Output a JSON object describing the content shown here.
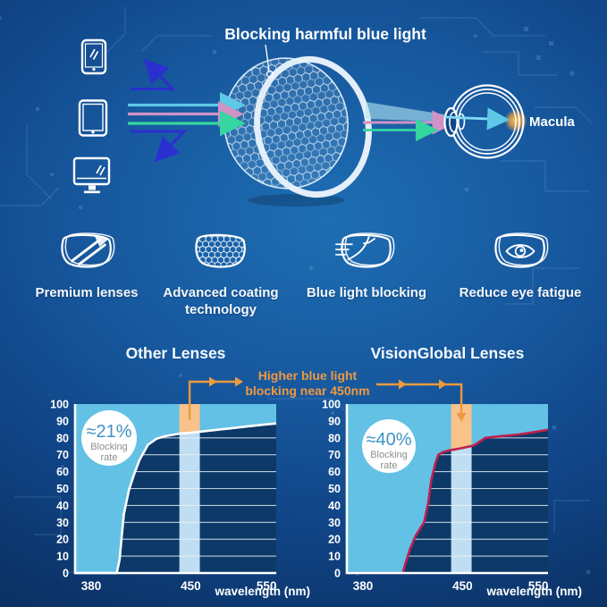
{
  "hero": {
    "title": "Blocking harmful blue light",
    "macula_label": "Macula",
    "device_icons": [
      "smartphone-icon",
      "tablet-icon",
      "monitor-icon"
    ],
    "ray_colors": {
      "cyan": "#5ec8e6",
      "pink": "#cf93c6",
      "green": "#35d6a0",
      "reflected_blue": "#2b2fd0"
    }
  },
  "features": {
    "items": [
      {
        "icon": "premium-lens-icon",
        "label_line1": "Premium lenses",
        "label_line2": ""
      },
      {
        "icon": "advanced-coating-lens-icon",
        "label_line1": "Advanced coating",
        "label_line2": "technology"
      },
      {
        "icon": "blue-light-blocking-lens-icon",
        "label_line1": "Blue light blocking",
        "label_line2": ""
      },
      {
        "icon": "reduce-eye-fatigue-lens-icon",
        "label_line1": "Reduce eye fatigue",
        "label_line2": ""
      }
    ]
  },
  "charts_annotation": {
    "line1": "Higher blue light",
    "line2": "blocking near 450nm"
  },
  "colors": {
    "plot_bg": "#0d3968",
    "fill_above_curve": "#62c1e5",
    "band": "#c0def1",
    "band_highlight": "#f8c28a",
    "grid": "#e8f2fa",
    "axis": "#ffffff",
    "tick_text": "#ffffff",
    "annotation_text": "#ef9940",
    "arrow_orange": "#ec9a3e",
    "badge_value_color": "#3e92c4",
    "badge_label_color": "#8d8d8d"
  },
  "chart_data": [
    {
      "type": "area",
      "title": "Other Lenses",
      "xlabel": "wavelength (nm)",
      "xticks": [
        380,
        450,
        550
      ],
      "yticks": [
        0,
        10,
        20,
        30,
        40,
        50,
        60,
        70,
        80,
        90,
        100
      ],
      "ylim": [
        0,
        100
      ],
      "grid": true,
      "badge": {
        "value": "≈21%",
        "label_line1": "Blocking",
        "label_line2": "rate"
      },
      "band_nm": [
        442,
        462
      ],
      "curve_color": "#ffffff",
      "curve": [
        [
          368,
          0
        ],
        [
          398,
          0
        ],
        [
          400,
          8
        ],
        [
          401.5,
          22
        ],
        [
          403,
          35
        ],
        [
          406.5,
          49
        ],
        [
          410,
          58
        ],
        [
          414,
          67
        ],
        [
          420,
          76
        ],
        [
          426,
          79.5
        ],
        [
          432,
          81
        ],
        [
          442,
          82.5
        ],
        [
          450,
          83
        ],
        [
          470,
          84
        ],
        [
          500,
          85.5
        ],
        [
          525,
          86.8
        ],
        [
          550,
          88
        ],
        [
          563,
          88.5
        ]
      ]
    },
    {
      "type": "area",
      "title": "VisionGlobal Lenses",
      "xlabel": "wavelength (nm)",
      "xticks": [
        380,
        450,
        550
      ],
      "yticks": [
        0,
        10,
        20,
        30,
        40,
        50,
        60,
        70,
        80,
        90,
        100
      ],
      "ylim": [
        0,
        100
      ],
      "grid": true,
      "badge": {
        "value": "≈40%",
        "label_line1": "Blocking",
        "label_line2": "rate"
      },
      "band_nm": [
        442,
        462
      ],
      "curve_color": "#c01f4e",
      "curve": [
        [
          368,
          0
        ],
        [
          408,
          0
        ],
        [
          410,
          6
        ],
        [
          413,
          14
        ],
        [
          417,
          22
        ],
        [
          423,
          30
        ],
        [
          426,
          42
        ],
        [
          428,
          55
        ],
        [
          431,
          65
        ],
        [
          433,
          70
        ],
        [
          436,
          71.5
        ],
        [
          440,
          72.5
        ],
        [
          450,
          74
        ],
        [
          465,
          75.5
        ],
        [
          480,
          80
        ],
        [
          500,
          81
        ],
        [
          524,
          82
        ],
        [
          550,
          83.8
        ],
        [
          563,
          84.8
        ]
      ]
    }
  ]
}
